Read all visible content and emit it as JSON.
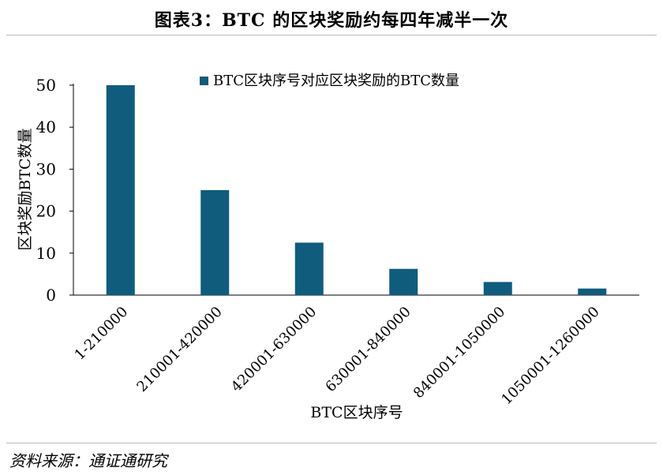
{
  "title": "图表3：BTC 的区块奖励约每四年减半一次",
  "source": "资料来源：通证通研究",
  "chart_data": {
    "type": "bar",
    "categories": [
      "1-210000",
      "210001-420000",
      "420001-630000",
      "630001-840000",
      "840001-1050000",
      "1050001-1260000"
    ],
    "series": [
      {
        "name": "BTC区块序号对应区块奖励的BTC数量",
        "values": [
          50,
          25,
          12.5,
          6.25,
          3.125,
          1.5625
        ]
      }
    ],
    "xlabel": "BTC区块序号",
    "ylabel": "区块奖励BTC数量",
    "ylim": [
      0,
      50
    ],
    "yticks": [
      0,
      10,
      20,
      30,
      40,
      50
    ],
    "grid": false,
    "legend": "top-center",
    "bar_color": "#0f5c7d"
  }
}
